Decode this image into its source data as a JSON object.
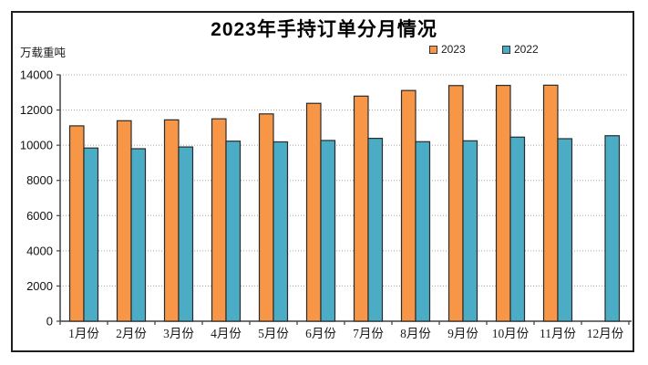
{
  "figure": {
    "title": "2023年手持订单分月情况",
    "unit_label": "万载重吨"
  },
  "chart_data": {
    "type": "bar",
    "title": "2023年手持订单分月情况",
    "ylabel": "万载重吨",
    "xlabel": "",
    "categories": [
      "1月份",
      "2月份",
      "3月份",
      "4月份",
      "5月份",
      "6月份",
      "7月份",
      "8月份",
      "9月份",
      "10月份",
      "11月份",
      "12月份"
    ],
    "series": [
      {
        "name": "2023",
        "color": "#F79646",
        "values": [
          11100,
          11390,
          11440,
          11500,
          11780,
          12380,
          12790,
          13110,
          13390,
          13400,
          13410,
          null
        ]
      },
      {
        "name": "2022",
        "color": "#4BACC6",
        "values": [
          9840,
          9800,
          9900,
          10230,
          10190,
          10270,
          10390,
          10200,
          10250,
          10460,
          10370,
          10540
        ]
      }
    ],
    "ylim": [
      0,
      14000
    ],
    "yticks": [
      0,
      2000,
      4000,
      6000,
      8000,
      10000,
      12000,
      14000
    ],
    "grid": true,
    "gridline_style": "dotted",
    "legend_position": "top-right",
    "bar_outline_color": "#2b2b2b",
    "axis_color": "#404040",
    "gridline_color": "#a6a6a6"
  }
}
